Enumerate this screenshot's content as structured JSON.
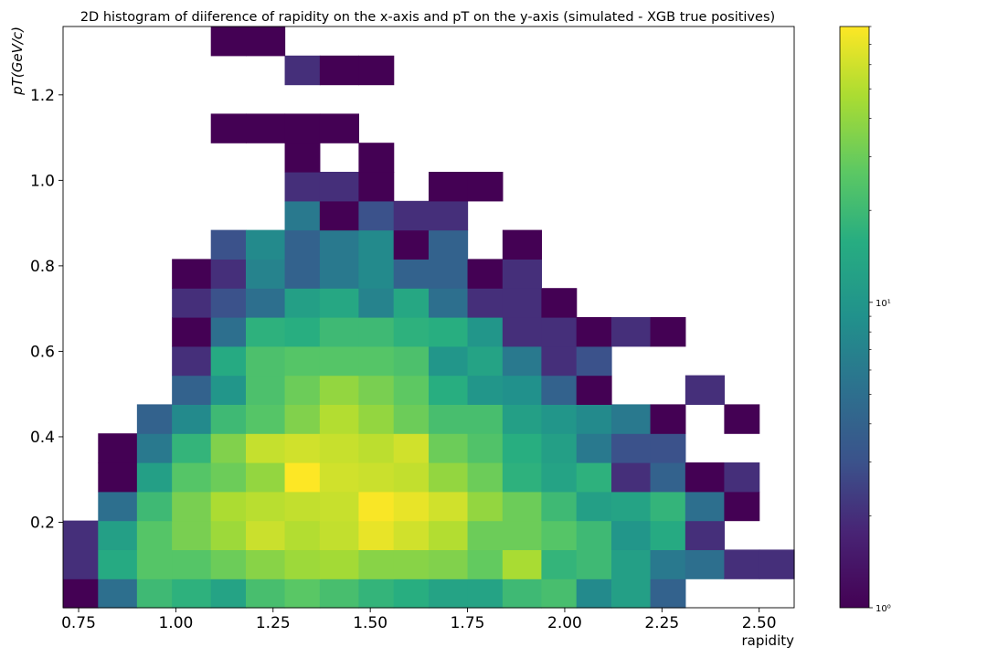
{
  "chart_data": {
    "type": "heatmap",
    "title": "2D histogram of diiference of rapidity on the x-axis and pT on the y-axis (simulated -  XGB true positives)",
    "xlabel": "rapidity",
    "ylabel": "pT(GeV/c)",
    "x_ticks": [
      "0.75",
      "1.00",
      "1.25",
      "1.50",
      "1.75",
      "2.00",
      "2.25",
      "2.50"
    ],
    "x_tick_values": [
      0.75,
      1.0,
      1.25,
      1.5,
      1.75,
      2.0,
      2.25,
      2.5
    ],
    "y_ticks": [
      "0.2",
      "0.4",
      "0.6",
      "0.8",
      "1.0",
      "1.2"
    ],
    "y_tick_values": [
      0.2,
      0.4,
      0.6,
      0.8,
      1.0,
      1.2
    ],
    "xlim": [
      0.71,
      2.59
    ],
    "ylim": [
      0.0,
      1.36
    ],
    "x_edges": [
      0.71,
      0.8,
      0.9,
      0.99,
      1.09,
      1.18,
      1.28,
      1.37,
      1.47,
      1.56,
      1.65,
      1.75,
      1.84,
      1.94,
      2.03,
      2.12,
      2.22,
      2.31,
      2.41,
      2.5,
      2.59
    ],
    "y_edges": [
      0.0,
      0.068,
      0.136,
      0.204,
      0.272,
      0.34,
      0.408,
      0.476,
      0.544,
      0.612,
      0.68,
      0.748,
      0.816,
      0.884,
      0.952,
      1.02,
      1.088,
      1.156,
      1.224,
      1.292,
      1.36
    ],
    "z_scale": "log",
    "colormap": "viridis",
    "colorbar": {
      "min": 1,
      "max": 80,
      "tick_labels": [
        "10⁰",
        "10¹"
      ],
      "tick_values": [
        1,
        10
      ]
    },
    "counts": [
      [
        1,
        5,
        20,
        17,
        13,
        22,
        26,
        22,
        18,
        16,
        13,
        13,
        20,
        22,
        8,
        12,
        4,
        null,
        null,
        null
      ],
      [
        2,
        15,
        25,
        25,
        30,
        37,
        43,
        45,
        37,
        37,
        35,
        28,
        47,
        18,
        20,
        12,
        6,
        5,
        2,
        2
      ],
      [
        2,
        12,
        25,
        33,
        43,
        58,
        50,
        55,
        70,
        60,
        50,
        30,
        30,
        25,
        20,
        10,
        15,
        2,
        null,
        null
      ],
      [
        null,
        5,
        20,
        33,
        48,
        52,
        55,
        57,
        78,
        70,
        60,
        40,
        30,
        20,
        12,
        13,
        18,
        5,
        1,
        null
      ],
      [
        null,
        1,
        12,
        25,
        30,
        40,
        80,
        60,
        58,
        55,
        40,
        30,
        17,
        13,
        17,
        2,
        4,
        1,
        2,
        null
      ],
      [
        null,
        1,
        6,
        18,
        35,
        56,
        60,
        57,
        53,
        60,
        30,
        24,
        16,
        12,
        6,
        3,
        3,
        null,
        null,
        null
      ],
      [
        null,
        null,
        4,
        8,
        20,
        25,
        35,
        50,
        40,
        30,
        22,
        22,
        12,
        10,
        8,
        6,
        1,
        null,
        1,
        null
      ],
      [
        null,
        null,
        null,
        4,
        10,
        23,
        30,
        40,
        33,
        27,
        16,
        10,
        9,
        4,
        1,
        null,
        null,
        2,
        null,
        null
      ],
      [
        null,
        null,
        null,
        2,
        15,
        23,
        25,
        25,
        25,
        23,
        10,
        13,
        6,
        2,
        3,
        null,
        null,
        null,
        null,
        null
      ],
      [
        null,
        null,
        null,
        1,
        5,
        17,
        16,
        20,
        20,
        17,
        16,
        10,
        2,
        2,
        1,
        2,
        1,
        null,
        null,
        null
      ],
      [
        null,
        null,
        null,
        2,
        3,
        5,
        12,
        14,
        7,
        14,
        5,
        2,
        2,
        1,
        null,
        null,
        null,
        null,
        null,
        null
      ],
      [
        null,
        null,
        null,
        1,
        2,
        7,
        4,
        6,
        8,
        4,
        4,
        1,
        2,
        null,
        null,
        null,
        null,
        null,
        null,
        null
      ],
      [
        null,
        null,
        null,
        null,
        3,
        8,
        4,
        6,
        8,
        1,
        4,
        null,
        1,
        null,
        null,
        null,
        null,
        null,
        null,
        null
      ],
      [
        null,
        null,
        null,
        null,
        null,
        null,
        6,
        1,
        3,
        2,
        2,
        null,
        null,
        null,
        null,
        null,
        null,
        null,
        null,
        null
      ],
      [
        null,
        null,
        null,
        null,
        null,
        null,
        2,
        2,
        1,
        null,
        1,
        1,
        null,
        null,
        null,
        null,
        null,
        null,
        null,
        null
      ],
      [
        null,
        null,
        null,
        null,
        null,
        null,
        1,
        null,
        1,
        null,
        null,
        null,
        null,
        null,
        null,
        null,
        null,
        null,
        null,
        null
      ],
      [
        null,
        null,
        null,
        null,
        1,
        1,
        1,
        1,
        null,
        null,
        null,
        null,
        null,
        null,
        null,
        null,
        null,
        null,
        null,
        null
      ],
      [
        null,
        null,
        null,
        null,
        null,
        null,
        null,
        null,
        null,
        null,
        null,
        null,
        null,
        null,
        null,
        null,
        null,
        null,
        null,
        null
      ],
      [
        null,
        null,
        null,
        null,
        null,
        null,
        2,
        1,
        1,
        null,
        null,
        null,
        null,
        null,
        null,
        null,
        null,
        null,
        null,
        null
      ],
      [
        null,
        null,
        null,
        null,
        1,
        1,
        null,
        null,
        null,
        null,
        null,
        null,
        null,
        null,
        null,
        null,
        null,
        null,
        null,
        null
      ]
    ]
  }
}
